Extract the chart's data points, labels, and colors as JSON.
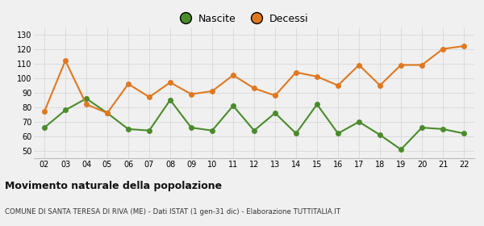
{
  "years": [
    "02",
    "03",
    "04",
    "05",
    "06",
    "07",
    "08",
    "09",
    "10",
    "11",
    "12",
    "13",
    "14",
    "15",
    "16",
    "17",
    "18",
    "19",
    "20",
    "21",
    "22"
  ],
  "nascite": [
    66,
    78,
    86,
    76,
    65,
    64,
    85,
    66,
    64,
    81,
    64,
    76,
    62,
    82,
    62,
    70,
    61,
    51,
    66,
    65,
    62
  ],
  "decessi": [
    77,
    112,
    82,
    76,
    96,
    87,
    97,
    89,
    91,
    102,
    93,
    88,
    104,
    101,
    95,
    109,
    95,
    109,
    109,
    120,
    122
  ],
  "nascite_color": "#4a8c2a",
  "decessi_color": "#e07820",
  "background_color": "#f0f0f0",
  "grid_color": "#d8d8d8",
  "ylim": [
    45,
    135
  ],
  "yticks": [
    50,
    60,
    70,
    80,
    90,
    100,
    110,
    120,
    130
  ],
  "title": "Movimento naturale della popolazione",
  "subtitle": "COMUNE DI SANTA TERESA DI RIVA (ME) - Dati ISTAT (1 gen-31 dic) - Elaborazione TUTTITALIA.IT",
  "legend_nascite": "Nascite",
  "legend_decessi": "Decessi",
  "marker_size": 4,
  "line_width": 1.5
}
